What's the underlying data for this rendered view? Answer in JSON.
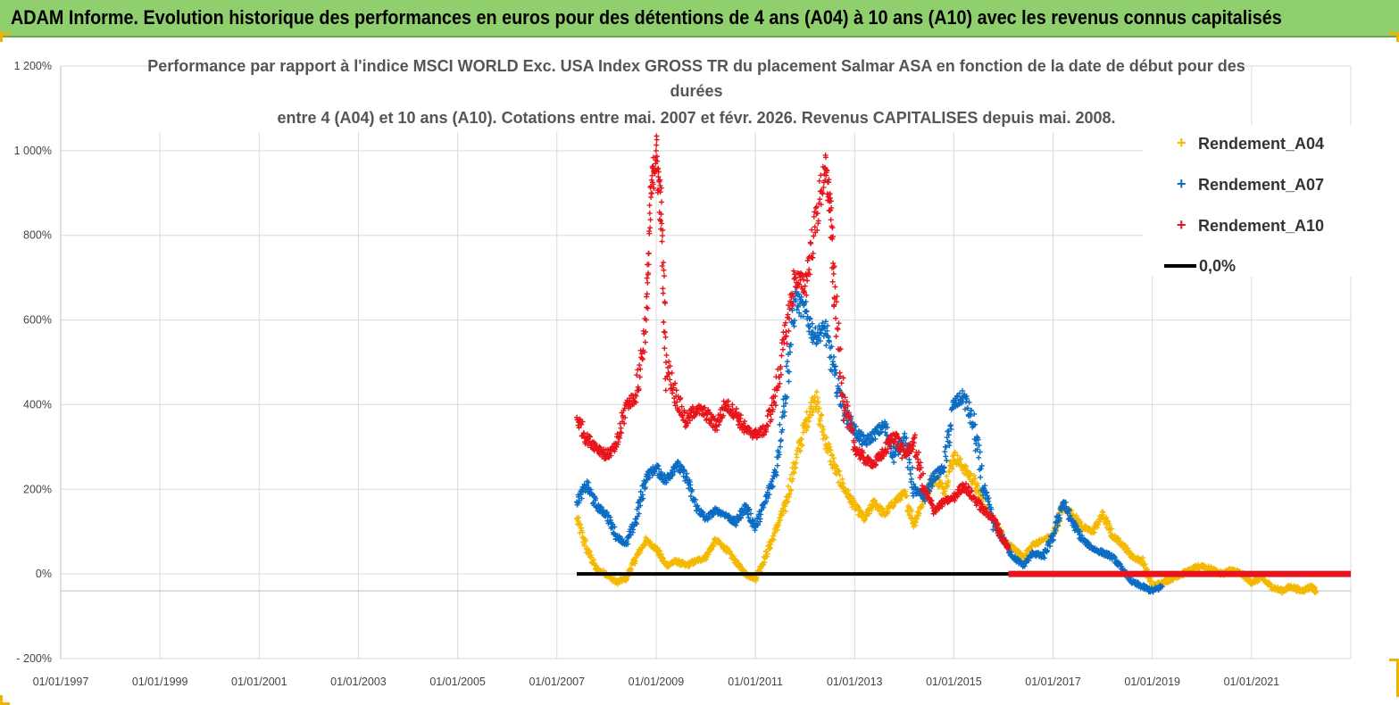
{
  "banner": {
    "title": "ADAM Informe. Evolution historique des performances en euros pour des détentions de 4 ans (A04) à 10 ans (A10) avec les revenus connus capitalisés"
  },
  "colors": {
    "banner_bg": "#8fcf6e",
    "a04": "#f5b800",
    "a07": "#0a6cc2",
    "a10": "#e8141b",
    "zero": "#000000",
    "grid": "#d9d9d9"
  },
  "chart_data": {
    "type": "scatter",
    "title_lines": [
      "Performance par rapport à l'indice MSCI WORLD Exc. USA Index GROSS TR  du placement Salmar ASA en fonction de la date de début pour des",
      "durées",
      "entre 4 (A04) et 10 ans (A10). Cotations entre mai. 2007 et févr. 2026. Revenus CAPITALISES depuis mai. 2008."
    ],
    "xlabel": "",
    "ylabel": "",
    "xlim": [
      1997.0,
      2023.0
    ],
    "ylim": [
      -200,
      1200
    ],
    "x_tick_labels": [
      "01/01/1997",
      "01/01/1999",
      "01/01/2001",
      "01/01/2003",
      "01/01/2005",
      "01/01/2007",
      "01/01/2009",
      "01/01/2011",
      "01/01/2013",
      "01/01/2015",
      "01/01/2017",
      "01/01/2019",
      "01/01/2021"
    ],
    "x_tick_years": [
      1997,
      1999,
      2001,
      2003,
      2005,
      2007,
      2009,
      2011,
      2013,
      2015,
      2017,
      2019,
      2021
    ],
    "y_tick_labels": [
      "- 200%",
      "0%",
      "200%",
      "400%",
      "600%",
      "800%",
      "1 000%",
      "1 200%"
    ],
    "y_tick_values": [
      -200,
      0,
      200,
      400,
      600,
      800,
      1000,
      1200
    ],
    "legend": [
      "Rendement_A04",
      "Rendement_A07",
      "Rendement_A10",
      "0,0%"
    ],
    "legend_position": "top-right",
    "series": [
      {
        "name": "Rendement_A04",
        "marker": "+",
        "x": [
          2007.4,
          2007.6,
          2007.8,
          2008.0,
          2008.2,
          2008.4,
          2008.6,
          2008.8,
          2009.0,
          2009.2,
          2009.4,
          2009.6,
          2009.8,
          2010.0,
          2010.2,
          2010.4,
          2010.6,
          2010.8,
          2011.0,
          2011.2,
          2011.4,
          2011.6,
          2011.8,
          2012.0,
          2012.2,
          2012.4,
          2012.6,
          2012.8,
          2013.0,
          2013.2,
          2013.4,
          2013.6,
          2013.8,
          2014.0,
          2014.2,
          2014.4,
          2014.6,
          2014.8,
          2015.0,
          2015.2,
          2015.4,
          2015.6,
          2015.8,
          2016.0,
          2016.2,
          2016.4,
          2016.6,
          2016.8,
          2017.0,
          2017.2,
          2017.4,
          2017.6,
          2017.8,
          2018.0,
          2018.2,
          2018.4,
          2018.6,
          2018.8,
          2019.0,
          2019.2,
          2019.4,
          2019.6,
          2019.8,
          2020.0,
          2020.2,
          2020.4,
          2020.6,
          2020.8,
          2021.0,
          2021.2,
          2021.4,
          2021.6,
          2021.8,
          2022.0,
          2022.2,
          2022.3
        ],
        "y": [
          130,
          60,
          10,
          0,
          -20,
          -10,
          40,
          80,
          60,
          20,
          30,
          20,
          30,
          40,
          80,
          60,
          30,
          0,
          -10,
          40,
          100,
          160,
          260,
          350,
          420,
          320,
          250,
          200,
          160,
          130,
          170,
          140,
          170,
          190,
          120,
          180,
          230,
          200,
          280,
          250,
          220,
          160,
          130,
          80,
          60,
          40,
          70,
          80,
          90,
          160,
          140,
          110,
          100,
          140,
          90,
          70,
          40,
          30,
          -30,
          -20,
          -10,
          0,
          10,
          20,
          10,
          0,
          10,
          0,
          -20,
          -10,
          -30,
          -40,
          -30,
          -40,
          -30,
          -40
        ]
      },
      {
        "name": "Rendement_A07",
        "marker": "+",
        "x": [
          2007.4,
          2007.6,
          2007.8,
          2008.0,
          2008.2,
          2008.4,
          2008.6,
          2008.8,
          2009.0,
          2009.2,
          2009.4,
          2009.6,
          2009.8,
          2010.0,
          2010.2,
          2010.4,
          2010.6,
          2010.8,
          2011.0,
          2011.2,
          2011.4,
          2011.6,
          2011.8,
          2012.0,
          2012.2,
          2012.4,
          2012.6,
          2012.8,
          2013.0,
          2013.2,
          2013.4,
          2013.6,
          2013.8,
          2014.0,
          2014.2,
          2014.4,
          2014.6,
          2014.8,
          2015.0,
          2015.2,
          2015.4,
          2015.6,
          2015.8,
          2016.0,
          2016.2,
          2016.4,
          2016.6,
          2016.8,
          2017.0,
          2017.2,
          2017.4,
          2017.6,
          2017.8,
          2018.0,
          2018.2,
          2018.4,
          2018.6,
          2018.8,
          2019.0,
          2019.2
        ],
        "y": [
          170,
          210,
          160,
          140,
          90,
          70,
          130,
          230,
          250,
          220,
          260,
          230,
          160,
          130,
          150,
          140,
          120,
          160,
          110,
          170,
          240,
          420,
          650,
          620,
          560,
          580,
          470,
          380,
          340,
          310,
          330,
          350,
          280,
          320,
          200,
          180,
          230,
          250,
          400,
          420,
          350,
          200,
          120,
          80,
          40,
          20,
          50,
          40,
          90,
          170,
          120,
          80,
          60,
          50,
          40,
          10,
          -20,
          -30,
          -40,
          -30
        ]
      },
      {
        "name": "Rendement_A10",
        "marker": "+",
        "x": [
          2007.4,
          2007.6,
          2007.8,
          2008.0,
          2008.2,
          2008.4,
          2008.6,
          2008.8,
          2008.9,
          2009.0,
          2009.1,
          2009.2,
          2009.4,
          2009.6,
          2009.8,
          2010.0,
          2010.2,
          2010.4,
          2010.6,
          2010.8,
          2011.0,
          2011.2,
          2011.4,
          2011.6,
          2011.8,
          2012.0,
          2012.2,
          2012.4,
          2012.5,
          2012.6,
          2012.8,
          2013.0,
          2013.2,
          2013.4,
          2013.6,
          2013.8,
          2014.0,
          2014.2,
          2014.4,
          2014.6,
          2014.8,
          2015.0,
          2015.2,
          2015.4,
          2015.6,
          2015.8,
          2016.0,
          2016.1
        ],
        "y": [
          370,
          320,
          300,
          280,
          300,
          400,
          420,
          600,
          900,
          1000,
          850,
          500,
          420,
          360,
          390,
          380,
          350,
          400,
          380,
          340,
          330,
          340,
          420,
          560,
          700,
          680,
          820,
          960,
          880,
          650,
          400,
          300,
          270,
          260,
          290,
          330,
          280,
          310,
          200,
          150,
          170,
          180,
          210,
          180,
          150,
          130,
          80,
          60
        ]
      },
      {
        "name": "0,0%",
        "type": "line",
        "segments": [
          {
            "x": [
              2007.4,
              2016.1
            ],
            "y": [
              0,
              0
            ],
            "color": "#000000"
          },
          {
            "x": [
              2016.1,
              2023.0
            ],
            "y": [
              0,
              0
            ],
            "color": "#e8141b"
          }
        ]
      }
    ]
  }
}
